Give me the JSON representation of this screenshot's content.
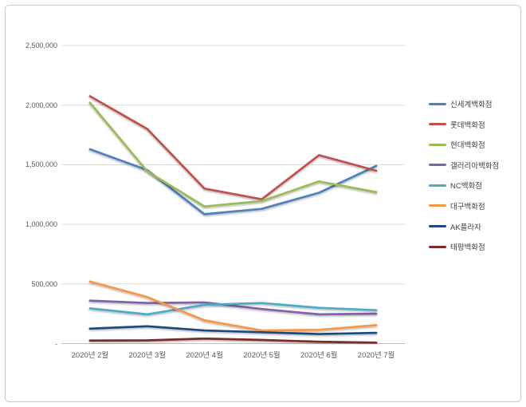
{
  "chart_data": {
    "type": "line",
    "title": "",
    "xlabel": "",
    "ylabel": "",
    "categories": [
      "2020년 2월",
      "2020년 3월",
      "2020년 4월",
      "2020년 5월",
      "2020년 6월",
      "2020년 7월"
    ],
    "series": [
      {
        "name": "신세계백화점",
        "color": "#4F81BD",
        "values": [
          1630000,
          1455000,
          1085000,
          1130000,
          1265000,
          1490000
        ]
      },
      {
        "name": "롯데백화점",
        "color": "#C0504D",
        "values": [
          2075000,
          1800000,
          1300000,
          1210000,
          1580000,
          1450000
        ]
      },
      {
        "name": "현대백화점",
        "color": "#9BBB59",
        "values": [
          2020000,
          1445000,
          1150000,
          1195000,
          1360000,
          1270000
        ]
      },
      {
        "name": "갤러리아백화점",
        "color": "#8064A2",
        "values": [
          360000,
          340000,
          345000,
          290000,
          245000,
          250000
        ]
      },
      {
        "name": "NC백화점",
        "color": "#4BACC6",
        "values": [
          295000,
          245000,
          325000,
          340000,
          300000,
          280000
        ]
      },
      {
        "name": "대구백화점",
        "color": "#F79646",
        "values": [
          520000,
          390000,
          195000,
          110000,
          115000,
          155000
        ]
      },
      {
        "name": "AK플라자",
        "color": "#1F497D",
        "values": [
          125000,
          145000,
          110000,
          95000,
          80000,
          90000
        ]
      },
      {
        "name": "태평백화점",
        "color": "#7B2C2A",
        "values": [
          25000,
          27000,
          42000,
          30000,
          15000,
          8000
        ]
      }
    ],
    "y_ticks": [
      {
        "label": "2,500,000",
        "value": 2500000
      },
      {
        "label": "2,000,000",
        "value": 2000000
      },
      {
        "label": "1,500,000",
        "value": 1500000
      },
      {
        "label": "1,000,000",
        "value": 1000000
      },
      {
        "label": "500,000",
        "value": 500000
      },
      {
        "label": "-",
        "value": 0
      }
    ],
    "ylim": [
      0,
      2500000
    ],
    "grid": true,
    "legend_position": "right"
  },
  "colors": {
    "background": "#ffffff",
    "frame_border": "#c9c9c9",
    "gridline": "#d9d9d9",
    "axis_line": "#bfbfbf",
    "tick_text": "#595959",
    "legend_text": "#404040"
  }
}
